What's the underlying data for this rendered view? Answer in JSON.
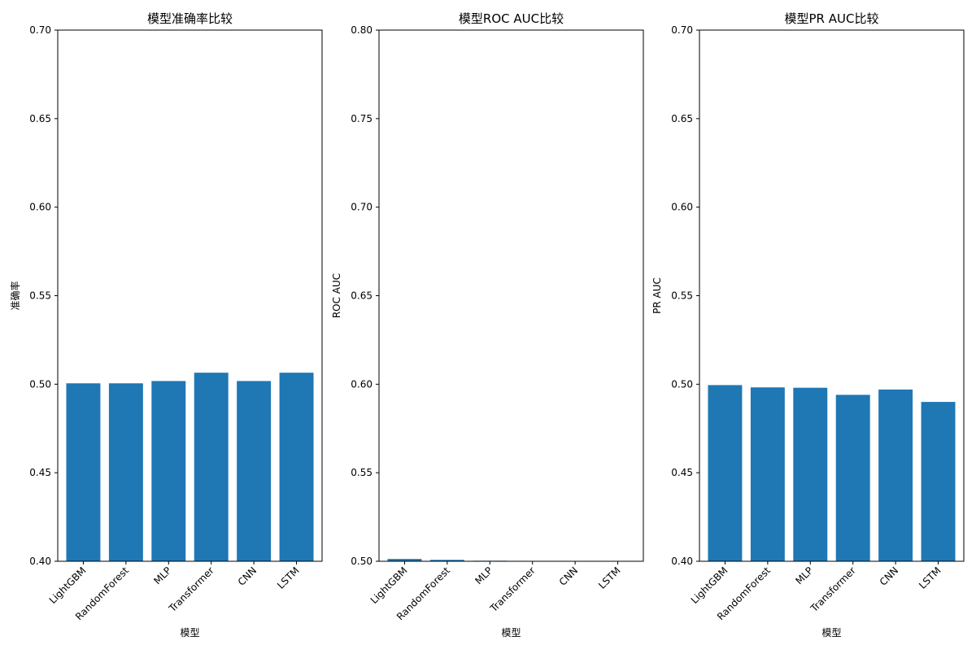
{
  "colors": {
    "bar": "#1f77b4",
    "axis": "#000000"
  },
  "chart_data": [
    {
      "type": "bar",
      "title": "模型准确率比较",
      "xlabel": "模型",
      "ylabel": "准确率",
      "categories": [
        "LightGBM",
        "RandomForest",
        "MLP",
        "Transformer",
        "CNN",
        "LSTM"
      ],
      "values": [
        0.5005,
        0.5005,
        0.5018,
        0.5065,
        0.5018,
        0.5065
      ],
      "ylim": [
        0.4,
        0.7
      ],
      "yticks": [
        "0.40",
        "0.45",
        "0.50",
        "0.55",
        "0.60",
        "0.65",
        "0.70"
      ],
      "grid": false
    },
    {
      "type": "bar",
      "title": "模型ROC AUC比较",
      "xlabel": "模型",
      "ylabel": "ROC AUC",
      "categories": [
        "LightGBM",
        "RandomForest",
        "MLP",
        "Transformer",
        "CNN",
        "LSTM"
      ],
      "values": [
        0.5013,
        0.5008,
        0.5003,
        0.5,
        0.5,
        0.5
      ],
      "ylim": [
        0.5,
        0.8
      ],
      "yticks": [
        "0.50",
        "0.55",
        "0.60",
        "0.65",
        "0.70",
        "0.75",
        "0.80"
      ],
      "grid": false
    },
    {
      "type": "bar",
      "title": "模型PR AUC比较",
      "xlabel": "模型",
      "ylabel": "PR AUC",
      "categories": [
        "LightGBM",
        "RandomForest",
        "MLP",
        "Transformer",
        "CNN",
        "LSTM"
      ],
      "values": [
        0.4995,
        0.4982,
        0.498,
        0.494,
        0.497,
        0.49
      ],
      "ylim": [
        0.4,
        0.7
      ],
      "yticks": [
        "0.40",
        "0.45",
        "0.50",
        "0.55",
        "0.60",
        "0.65",
        "0.70"
      ],
      "grid": false
    }
  ]
}
